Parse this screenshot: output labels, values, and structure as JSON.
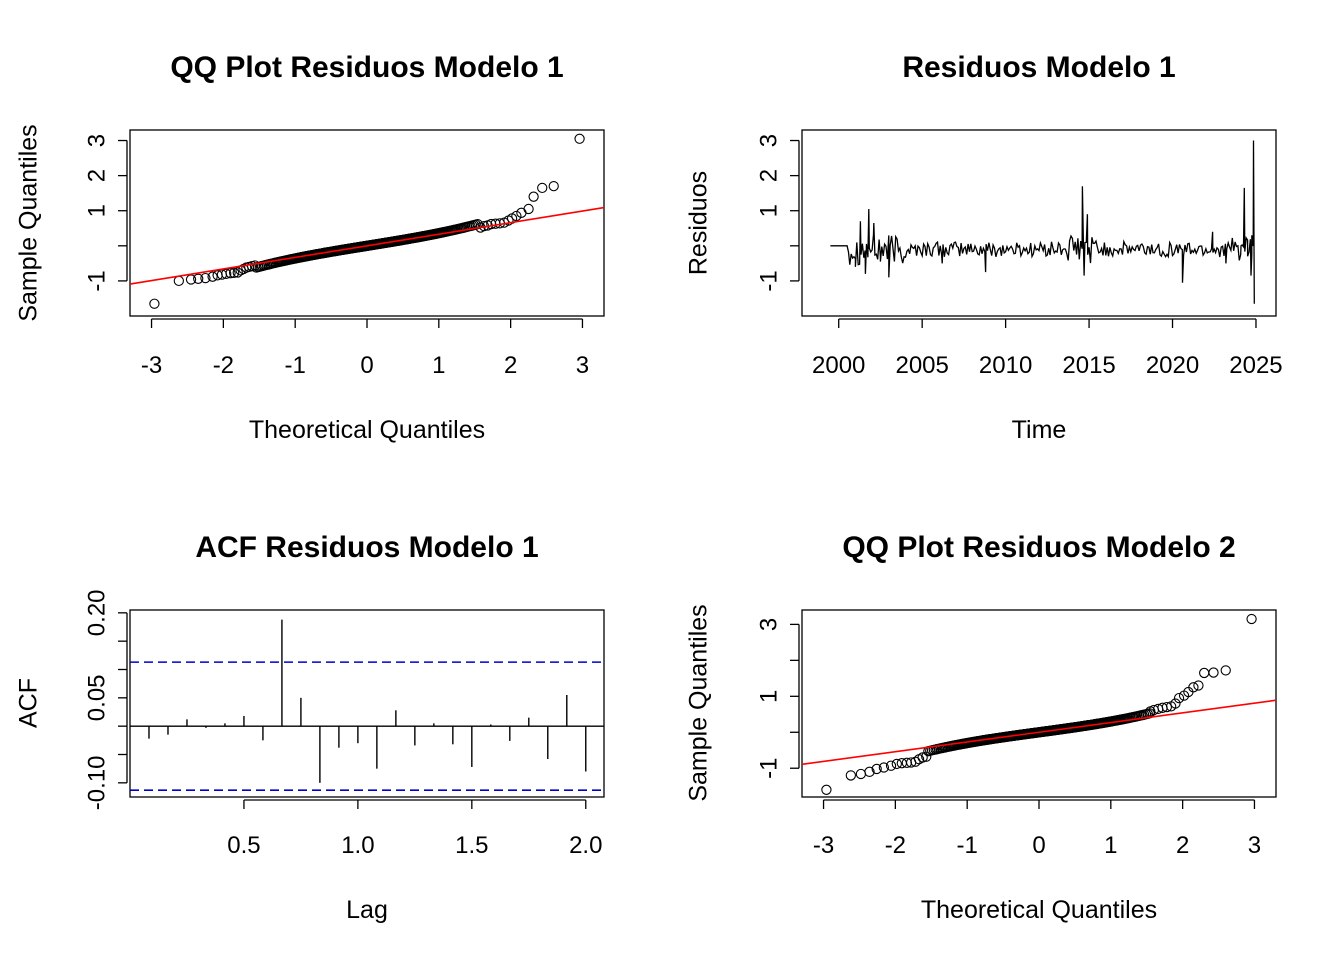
{
  "chart_data": [
    {
      "type": "scatter",
      "title": "QQ Plot Residuos Modelo 1",
      "xlabel": "Theoretical Quantiles",
      "ylabel": "Sample Quantiles",
      "xlim": [
        -3.3,
        3.3
      ],
      "ylim": [
        -2.0,
        3.3
      ],
      "xticks": [
        -3,
        -2,
        -1,
        0,
        1,
        2,
        3
      ],
      "xticklabels": [
        "-3",
        "-2",
        "-1",
        "0",
        "1",
        "2",
        "3"
      ],
      "yticks": [
        -1,
        0,
        1,
        2,
        3
      ],
      "yticklabels": [
        "-1",
        "",
        "1",
        "2",
        "3"
      ],
      "ref_line": {
        "slope": 0.33,
        "intercept": 0.0,
        "color": "#ff0000"
      },
      "point_color": "#000000",
      "extreme_points": [
        [
          -2.96,
          -1.65
        ],
        [
          -2.62,
          -1.0
        ],
        [
          -2.45,
          -0.96
        ],
        [
          -2.35,
          -0.94
        ],
        [
          -2.25,
          -0.92
        ],
        [
          -2.15,
          -0.88
        ],
        [
          -2.08,
          -0.84
        ],
        [
          -2.02,
          -0.82
        ],
        [
          -1.96,
          -0.8
        ],
        [
          -1.9,
          -0.78
        ],
        [
          -1.85,
          -0.77
        ],
        [
          -1.8,
          -0.76
        ],
        [
          -1.76,
          -0.7
        ],
        [
          -1.72,
          -0.66
        ],
        [
          -1.68,
          -0.62
        ],
        [
          -1.64,
          -0.6
        ],
        [
          -1.6,
          -0.58
        ],
        [
          -1.56,
          -0.56
        ],
        [
          1.58,
          0.52
        ],
        [
          1.63,
          0.56
        ],
        [
          1.68,
          0.58
        ],
        [
          1.73,
          0.62
        ],
        [
          1.79,
          0.63
        ],
        [
          1.85,
          0.64
        ],
        [
          1.91,
          0.66
        ],
        [
          1.97,
          0.72
        ],
        [
          2.02,
          0.78
        ],
        [
          2.08,
          0.85
        ],
        [
          2.15,
          0.94
        ],
        [
          2.25,
          1.05
        ],
        [
          2.32,
          1.4
        ],
        [
          2.44,
          1.65
        ],
        [
          2.6,
          1.7
        ],
        [
          2.96,
          3.05
        ]
      ],
      "bulk_range": [
        -1.55,
        1.55
      ]
    },
    {
      "type": "line",
      "title": "Residuos Modelo 1",
      "xlabel": "Time",
      "ylabel": "Residuos",
      "xlim": [
        1997.8,
        2026.2
      ],
      "ylim": [
        -2.0,
        3.3
      ],
      "xticks": [
        2000,
        2005,
        2010,
        2015,
        2020,
        2025
      ],
      "xticklabels": [
        "2000",
        "2005",
        "2010",
        "2015",
        "2020",
        "2025"
      ],
      "yticks": [
        -1,
        0,
        1,
        2,
        3
      ],
      "yticklabels": [
        "-1",
        "",
        "1",
        "2",
        "3"
      ],
      "series_start": 1999.5,
      "series_end": 2024.9,
      "flat_until": 2000.5,
      "spikes": [
        [
          2001.0,
          -0.6
        ],
        [
          2001.3,
          0.7
        ],
        [
          2001.6,
          -0.8
        ],
        [
          2001.8,
          1.05
        ],
        [
          2002.1,
          0.65
        ],
        [
          2002.5,
          -0.45
        ],
        [
          2003.0,
          -0.9
        ],
        [
          2006.2,
          -0.5
        ],
        [
          2008.8,
          -0.75
        ],
        [
          2014.6,
          1.7
        ],
        [
          2014.7,
          -0.85
        ],
        [
          2014.9,
          0.9
        ],
        [
          2020.6,
          -1.05
        ],
        [
          2022.4,
          0.4
        ],
        [
          2023.2,
          -0.5
        ],
        [
          2024.1,
          0.0
        ],
        [
          2024.3,
          1.65
        ],
        [
          2024.5,
          -0.3
        ],
        [
          2024.7,
          -0.85
        ],
        [
          2024.75,
          0.3
        ],
        [
          2024.85,
          3.0
        ],
        [
          2024.9,
          -1.65
        ]
      ]
    },
    {
      "type": "bar",
      "title": "ACF Residuos Modelo 1",
      "xlabel": "Lag",
      "ylabel": "ACF",
      "xlim": [
        0.0,
        2.08
      ],
      "ylim": [
        -0.125,
        0.205
      ],
      "xticks": [
        0.5,
        1.0,
        1.5,
        2.0
      ],
      "xticklabels": [
        "0.5",
        "1.0",
        "1.5",
        "2.0"
      ],
      "yticks": [
        -0.1,
        -0.05,
        0.0,
        0.05,
        0.1,
        0.15,
        0.2
      ],
      "yticklabels": [
        "-0.10",
        "",
        "",
        "0.05",
        "",
        "",
        "0.20"
      ],
      "conf_limit": 0.113,
      "conf_color": "#0000cc",
      "lags": [
        0.0833,
        0.1667,
        0.25,
        0.3333,
        0.4167,
        0.5,
        0.5833,
        0.6667,
        0.75,
        0.8333,
        0.9167,
        1.0,
        1.0833,
        1.1667,
        1.25,
        1.3333,
        1.4167,
        1.5,
        1.5833,
        1.6667,
        1.75,
        1.8333,
        1.9167,
        2.0
      ],
      "values": [
        -0.022,
        -0.015,
        0.012,
        -0.003,
        0.005,
        0.018,
        -0.025,
        0.188,
        0.05,
        -0.1,
        -0.038,
        -0.03,
        -0.075,
        0.028,
        -0.034,
        0.005,
        -0.032,
        -0.072,
        0.003,
        -0.026,
        0.015,
        -0.058,
        0.055,
        -0.08
      ]
    },
    {
      "type": "scatter",
      "title": "QQ Plot Residuos Modelo 2",
      "xlabel": "Theoretical Quantiles",
      "ylabel": "Sample Quantiles",
      "xlim": [
        -3.3,
        3.3
      ],
      "ylim": [
        -1.8,
        3.4
      ],
      "xticks": [
        -3,
        -2,
        -1,
        0,
        1,
        2,
        3
      ],
      "xticklabels": [
        "-3",
        "-2",
        "-1",
        "0",
        "1",
        "2",
        "3"
      ],
      "yticks": [
        -1,
        0,
        1,
        2,
        3
      ],
      "yticklabels": [
        "-1",
        "",
        "1",
        "",
        "3"
      ],
      "ref_line": {
        "slope": 0.27,
        "intercept": 0.0,
        "color": "#ff0000"
      },
      "point_color": "#000000",
      "extreme_points": [
        [
          -2.96,
          -1.6
        ],
        [
          -2.62,
          -1.2
        ],
        [
          -2.48,
          -1.16
        ],
        [
          -2.36,
          -1.1
        ],
        [
          -2.26,
          -1.02
        ],
        [
          -2.16,
          -0.98
        ],
        [
          -2.06,
          -0.93
        ],
        [
          -1.98,
          -0.88
        ],
        [
          -1.91,
          -0.86
        ],
        [
          -1.84,
          -0.85
        ],
        [
          -1.78,
          -0.84
        ],
        [
          -1.72,
          -0.82
        ],
        [
          -1.67,
          -0.75
        ],
        [
          -1.62,
          -0.7
        ],
        [
          -1.57,
          -0.68
        ],
        [
          1.55,
          0.58
        ],
        [
          1.6,
          0.62
        ],
        [
          1.66,
          0.65
        ],
        [
          1.72,
          0.68
        ],
        [
          1.78,
          0.7
        ],
        [
          1.84,
          0.72
        ],
        [
          1.9,
          0.8
        ],
        [
          1.95,
          0.95
        ],
        [
          2.02,
          1.02
        ],
        [
          2.08,
          1.12
        ],
        [
          2.15,
          1.25
        ],
        [
          2.22,
          1.3
        ],
        [
          2.3,
          1.65
        ],
        [
          2.43,
          1.66
        ],
        [
          2.6,
          1.72
        ],
        [
          2.96,
          3.15
        ]
      ],
      "bulk_range": [
        -1.55,
        1.55
      ]
    }
  ]
}
